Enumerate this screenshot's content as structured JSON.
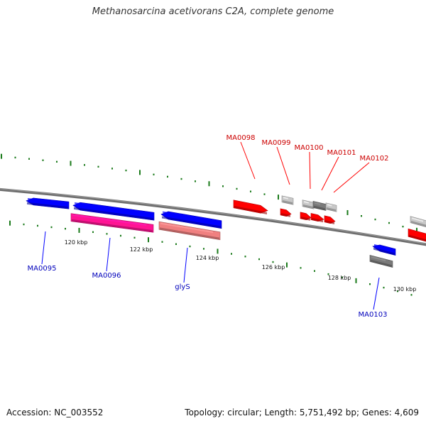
{
  "title": "Methanosarcina acetivorans C2A, complete genome",
  "accession_label": "Accession:",
  "accession": "NC_003552",
  "summary": {
    "topology_label": "Topology:",
    "topology": "circular",
    "length_label": "Length:",
    "length": "5,751,492 bp",
    "genes_label": "Genes:",
    "genes": "4,609"
  },
  "colors": {
    "backbone": "#6e6e6e",
    "forward_gene": "#ff0000",
    "reverse_gene": "#0000ff",
    "forward_label": "#cc0000",
    "reverse_label": "#0000bb",
    "rna_pink": "#ff1493",
    "rna_salmon": "#f08080",
    "unlabeled_gray": "#c8c8c8",
    "tick_green": "#1a7a1a"
  },
  "scale_labels": [
    "120 kbp",
    "122 kbp",
    "124 kbp",
    "126 kbp",
    "128 kbp",
    "130 kbp"
  ],
  "genes": [
    {
      "name": "MA0095",
      "strand": "reverse"
    },
    {
      "name": "MA0096",
      "strand": "reverse"
    },
    {
      "name": "glyS",
      "strand": "reverse"
    },
    {
      "name": "MA0098",
      "strand": "forward"
    },
    {
      "name": "MA0099",
      "strand": "forward"
    },
    {
      "name": "MA0100",
      "strand": "forward"
    },
    {
      "name": "MA0101",
      "strand": "forward"
    },
    {
      "name": "MA0102",
      "strand": "forward"
    },
    {
      "name": "MA0103",
      "strand": "reverse"
    }
  ]
}
